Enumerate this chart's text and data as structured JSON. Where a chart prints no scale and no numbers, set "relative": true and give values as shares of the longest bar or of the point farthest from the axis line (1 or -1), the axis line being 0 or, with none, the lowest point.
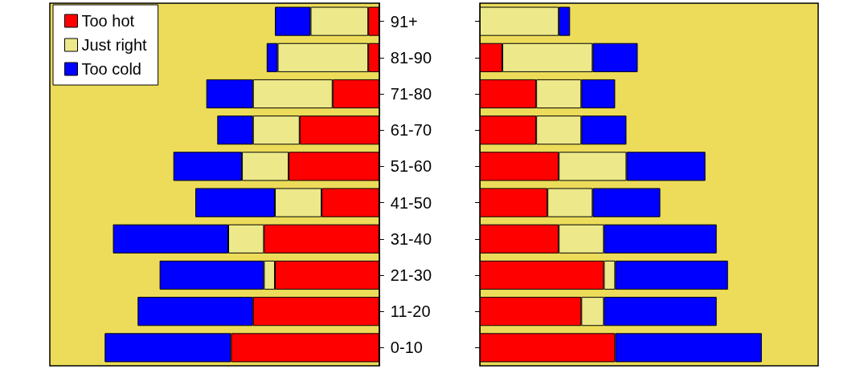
{
  "chart_data": [
    {
      "type": "bar",
      "orientation": "horizontal",
      "stacked": true,
      "relative": true,
      "legend": "top left",
      "categories": [
        "91+",
        "81-90",
        "71-80",
        "61-70",
        "51-60",
        "41-50",
        "31-40",
        "21-30",
        "11-20",
        "0-10"
      ],
      "series": [
        {
          "name": "Too hot",
          "color": "#ff0000",
          "values": [
            0.04,
            0.04,
            0.17,
            0.29,
            0.33,
            0.21,
            0.42,
            0.38,
            0.46,
            0.54
          ]
        },
        {
          "name": "Just right",
          "color": "#ede98a",
          "values": [
            0.21,
            0.33,
            0.29,
            0.17,
            0.17,
            0.17,
            0.13,
            0.04,
            0,
            0
          ]
        },
        {
          "name": "Too cold",
          "color": "#0000ff",
          "values": [
            0.13,
            0.04,
            0.17,
            0.13,
            0.25,
            0.29,
            0.42,
            0.38,
            0.42,
            0.46
          ]
        }
      ]
    },
    {
      "type": "bar",
      "orientation": "horizontal",
      "stacked": true,
      "relative": true,
      "categories": [
        null,
        null,
        null,
        null,
        null,
        null,
        null,
        null,
        null,
        null
      ],
      "series": [
        {
          "color": "#ff0000",
          "values": [
            0,
            0.08,
            0.2,
            0.2,
            0.28,
            0.24,
            0.28,
            0.44,
            0.36,
            0.48
          ]
        },
        {
          "color": "#ede98a",
          "values": [
            0.28,
            0.32,
            0.16,
            0.16,
            0.24,
            0.16,
            0.16,
            0.04,
            0.08,
            0
          ]
        },
        {
          "color": "#0000ff",
          "values": [
            0.04,
            0.16,
            0.12,
            0.16,
            0.28,
            0.24,
            0.4,
            0.4,
            0.4,
            0.52
          ]
        }
      ]
    }
  ]
}
